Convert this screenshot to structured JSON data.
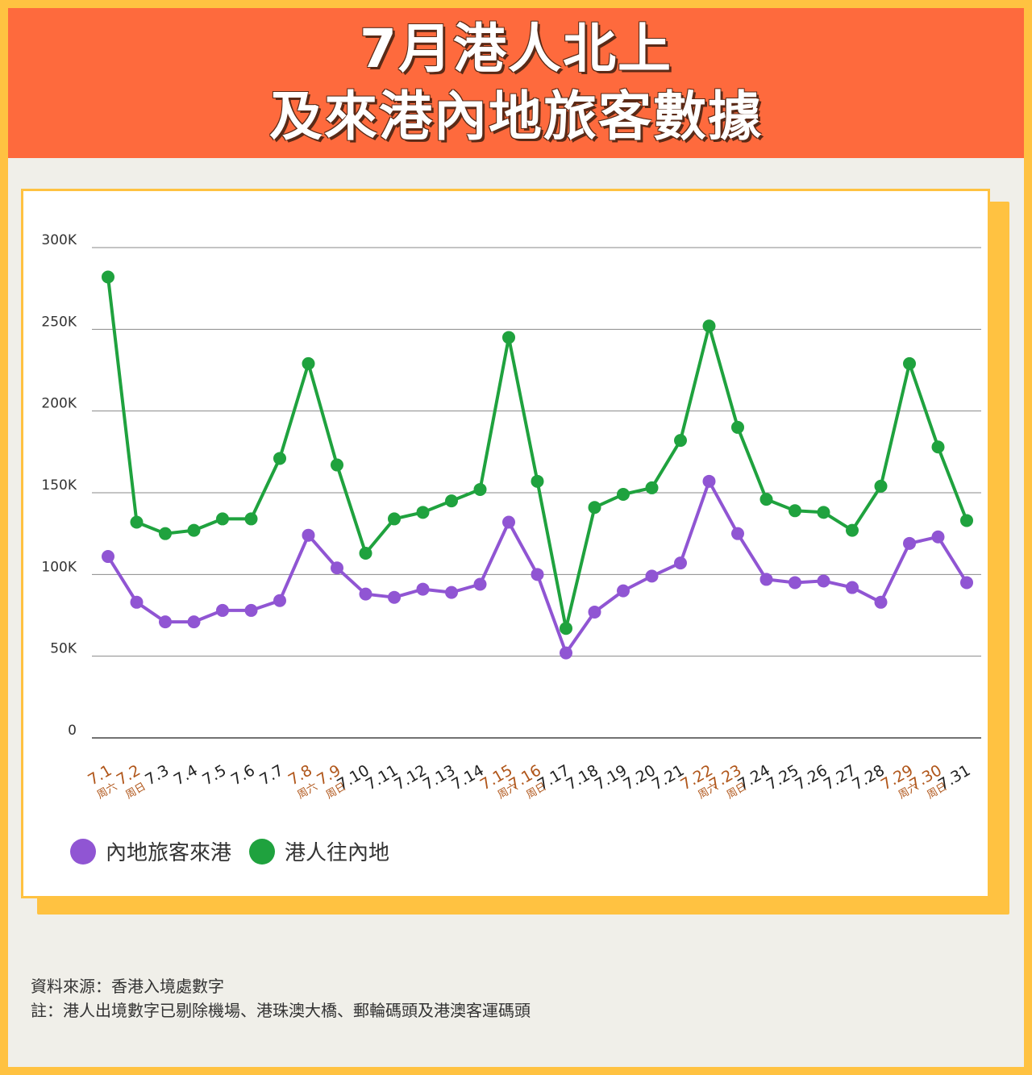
{
  "header": {
    "title_line1": "7月港人北上",
    "title_line2": "及來港內地旅客數據"
  },
  "colors": {
    "header_bg": "#fe6a3d",
    "frame": "#ffc241",
    "mainland": "#9055d3",
    "hk": "#1fa23e",
    "weekend_label": "#b0561a"
  },
  "chart_data": {
    "type": "line",
    "x": [
      "7.1",
      "7.2",
      "7.3",
      "7.4",
      "7.5",
      "7.6",
      "7.7",
      "7.8",
      "7.9",
      "7.10",
      "7.11",
      "7.12",
      "7.13",
      "7.14",
      "7.15",
      "7.16",
      "7.17",
      "7.18",
      "7.19",
      "7.20",
      "7.21",
      "7.22",
      "7.23",
      "7.24",
      "7.25",
      "7.26",
      "7.27",
      "7.28",
      "7.29",
      "7.30",
      "7.31"
    ],
    "weekend_marks": {
      "7.1": "周六",
      "7.2": "周日",
      "7.8": "周六",
      "7.9": "周日",
      "7.15": "周六",
      "7.16": "周日",
      "7.22": "周六",
      "7.23": "周日",
      "7.29": "周六",
      "7.30": "周日"
    },
    "y_ticks": [
      "0",
      "50K",
      "100K",
      "150K",
      "200K",
      "250K",
      "300K"
    ],
    "ylim": [
      0,
      300000
    ],
    "grid": true,
    "legend_position": "bottom-left",
    "series": [
      {
        "name": "內地旅客來港",
        "color": "#9055d3",
        "values": [
          111000,
          83000,
          71000,
          71000,
          78000,
          78000,
          84000,
          124000,
          104000,
          88000,
          86000,
          91000,
          89000,
          94000,
          132000,
          100000,
          52000,
          77000,
          90000,
          99000,
          107000,
          157000,
          125000,
          97000,
          95000,
          96000,
          92000,
          83000,
          119000,
          123000,
          95000
        ]
      },
      {
        "name": "港人往內地",
        "color": "#1fa23e",
        "values": [
          282000,
          132000,
          125000,
          127000,
          134000,
          134000,
          171000,
          229000,
          167000,
          113000,
          134000,
          138000,
          145000,
          152000,
          245000,
          157000,
          67000,
          141000,
          149000,
          153000,
          182000,
          252000,
          190000,
          146000,
          139000,
          138000,
          127000,
          154000,
          229000,
          178000,
          133000
        ]
      }
    ]
  },
  "footer": {
    "source": "資料來源：香港入境處數字",
    "note": "註：港人出境數字已剔除機場、港珠澳大橋、郵輪碼頭及港澳客運碼頭"
  }
}
